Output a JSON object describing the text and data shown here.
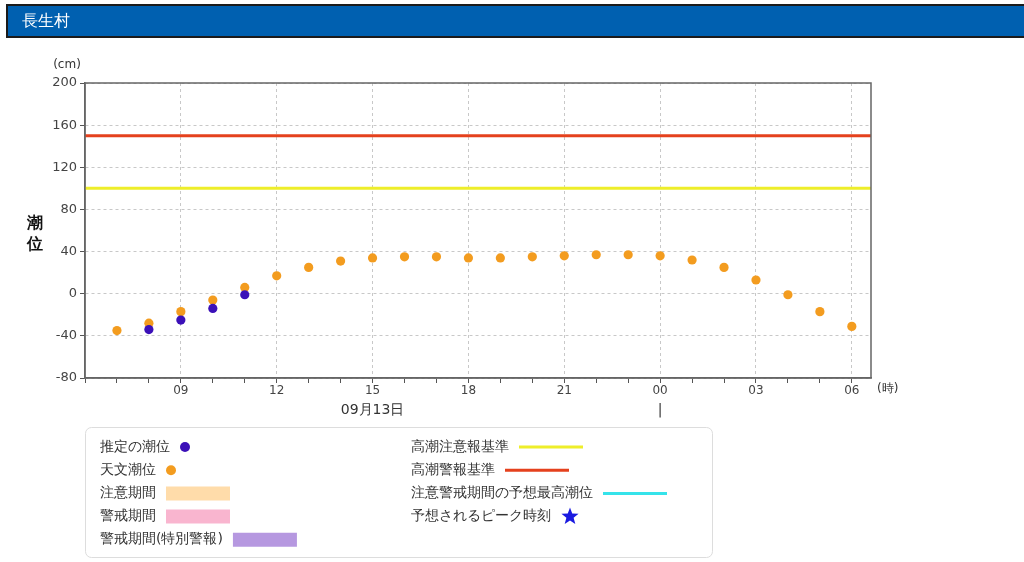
{
  "chart_data": {
    "type": "scatter",
    "title": "長生村",
    "ylabel": "潮位",
    "xlabel": "(時)",
    "annotations": [
      "(cm)",
      "09月13日",
      "|"
    ],
    "xlim": [
      "--09-13T06:00",
      "--09-14T06:36"
    ],
    "xticks": [
      {
        "value": "--09-13T06:00",
        "label": null
      },
      {
        "value": "--09-13T07:00",
        "label": null
      },
      {
        "value": "--09-13T08:00",
        "label": null
      },
      {
        "value": "--09-13T09:00",
        "label": "09"
      },
      {
        "value": "--09-13T10:00",
        "label": null
      },
      {
        "value": "--09-13T11:00",
        "label": null
      },
      {
        "value": "--09-13T12:00",
        "label": "12"
      },
      {
        "value": "--09-13T13:00",
        "label": null
      },
      {
        "value": "--09-13T14:00",
        "label": null
      },
      {
        "value": "--09-13T15:00",
        "label": "15"
      },
      {
        "value": "--09-13T16:00",
        "label": null
      },
      {
        "value": "--09-13T17:00",
        "label": null
      },
      {
        "value": "--09-13T18:00",
        "label": "18"
      },
      {
        "value": "--09-13T19:00",
        "label": null
      },
      {
        "value": "--09-13T20:00",
        "label": null
      },
      {
        "value": "--09-13T21:00",
        "label": "21"
      },
      {
        "value": "--09-13T22:00",
        "label": null
      },
      {
        "value": "--09-13T23:00",
        "label": null
      },
      {
        "value": "--09-14T00:00",
        "label": "00"
      },
      {
        "value": "--09-14T01:00",
        "label": null
      },
      {
        "value": "--09-14T02:00",
        "label": null
      },
      {
        "value": "--09-14T03:00",
        "label": "03"
      },
      {
        "value": "--09-14T04:00",
        "label": null
      },
      {
        "value": "--09-14T05:00",
        "label": null
      },
      {
        "value": "--09-14T06:00",
        "label": "06"
      }
    ],
    "ylim": [
      -80,
      200
    ],
    "yticks": [
      -80,
      -40,
      0,
      40,
      80,
      120,
      160,
      200
    ],
    "grid": true,
    "legend": "bottom",
    "marker": "circle",
    "ref_lines": [
      {
        "axis": "y",
        "value": 100,
        "label": "高潮注意報基準",
        "color": "#eeee2a"
      },
      {
        "axis": "y",
        "value": 150,
        "label": "高潮警報基準",
        "color": "#e5411d"
      }
    ],
    "series": [
      {
        "name": "推定の潮位",
        "color": "#3b10b8",
        "x": [
          "--09-13T08:00",
          "--09-13T09:00",
          "--09-13T10:00",
          "--09-13T11:00"
        ],
        "values": [
          -34,
          -25,
          -14,
          -1
        ]
      },
      {
        "name": "天文潮位",
        "color": "#f39c1f",
        "x": [
          "--09-13T07:00",
          "--09-13T08:00",
          "--09-13T09:00",
          "--09-13T10:00",
          "--09-13T11:00",
          "--09-13T12:00",
          "--09-13T13:00",
          "--09-13T14:00",
          "--09-13T15:00",
          "--09-13T16:00",
          "--09-13T17:00",
          "--09-13T18:00",
          "--09-13T19:00",
          "--09-13T20:00",
          "--09-13T21:00",
          "--09-13T22:00",
          "--09-13T23:00",
          "--09-14T00:00",
          "--09-14T01:00",
          "--09-14T02:00",
          "--09-14T03:00",
          "--09-14T04:00",
          "--09-14T05:00",
          "--09-14T06:00"
        ],
        "values": [
          -35,
          -28,
          -17,
          -6,
          6,
          17,
          25,
          31,
          34,
          35,
          35,
          34,
          34,
          35,
          36,
          37,
          37,
          36,
          32,
          25,
          13,
          -1,
          -17,
          -31
        ]
      },
      {
        "name": "注意期間",
        "type": "area",
        "color": "#ffdcaa"
      },
      {
        "name": "警戒期間",
        "type": "area",
        "color": "#f9b5cf"
      },
      {
        "name": "警戒期間(特別警報)",
        "type": "area",
        "color": "#b698e0"
      },
      {
        "name": "注意警戒期間の予想最高潮位",
        "type": "line",
        "color": "#35e3ea"
      },
      {
        "name": "予想されるピーク時刻",
        "type": "scatter",
        "marker": "star",
        "color": "#1a1ae0"
      }
    ]
  }
}
